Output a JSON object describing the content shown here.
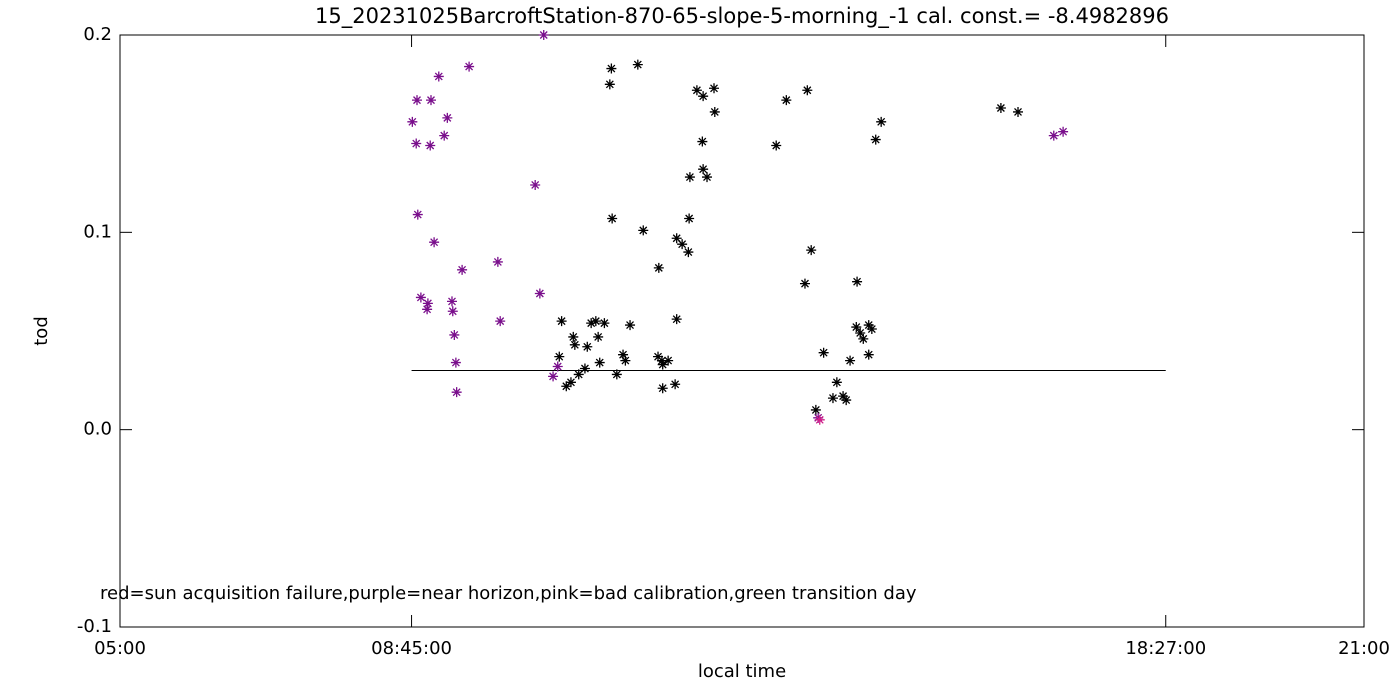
{
  "chart_data": {
    "type": "scatter",
    "title": "15_20231025BarcroftStation-870-65-slope-5-morning_-1 cal. const.= -8.4982896",
    "x_label": "local time",
    "y_label": "tod",
    "annotation": "red=sun acquisition failure,purple=near horizon,pink=bad calibration,green transition day",
    "xlim": [
      5,
      21
    ],
    "ylim": [
      -0.1,
      0.2
    ],
    "xticks": [
      {
        "value": 5,
        "label": "05:00"
      },
      {
        "value": 8.75,
        "label": "08:45:00"
      },
      {
        "value": 18.45,
        "label": "18:27:00"
      },
      {
        "value": 21,
        "label": "21:00"
      }
    ],
    "yticks": [
      -0.1,
      {
        "value": 0,
        "label": "0.0"
      },
      0.1,
      0.2
    ],
    "hline": {
      "value": 0.03,
      "xrange": [
        8.75,
        18.45
      ]
    },
    "series": [
      {
        "color": "#000000",
        "x": [
          11.32,
          11.3,
          11.66,
          11.33,
          11.73,
          11.93,
          12.33,
          12.49,
          12.5,
          12.55,
          12.64,
          12.65,
          12.42,
          12.5,
          12.32,
          12.16,
          12.23,
          12.31,
          13.44,
          13.57,
          13.84,
          13.89,
          13.81,
          14.79,
          14.72,
          16.33,
          16.55,
          14.48,
          14.47,
          14.52,
          14.56,
          14.63,
          14.67,
          14.63,
          14.39,
          14.05,
          13.95,
          14.22,
          14.17,
          14.3,
          14.34,
          10.68,
          10.65,
          10.74,
          10.8,
          10.83,
          10.85,
          10.9,
          10.98,
          11.01,
          11.06,
          11.12,
          11.23,
          11.15,
          11.17,
          11.39,
          11.47,
          11.5,
          11.56,
          11.92,
          11.97,
          11.98,
          12.05,
          11.98,
          12.14,
          12.16
        ],
        "values": [
          0.183,
          0.175,
          0.185,
          0.107,
          0.101,
          0.082,
          0.128,
          0.146,
          0.132,
          0.128,
          0.173,
          0.161,
          0.172,
          0.169,
          0.107,
          0.097,
          0.094,
          0.09,
          0.144,
          0.167,
          0.172,
          0.091,
          0.074,
          0.156,
          0.147,
          0.163,
          0.161,
          0.075,
          0.052,
          0.049,
          0.046,
          0.053,
          0.051,
          0.038,
          0.035,
          0.039,
          0.01,
          0.024,
          0.016,
          0.017,
          0.015,
          0.055,
          0.037,
          0.022,
          0.024,
          0.047,
          0.043,
          0.028,
          0.031,
          0.042,
          0.054,
          0.055,
          0.054,
          0.047,
          0.034,
          0.028,
          0.038,
          0.035,
          0.053,
          0.037,
          0.035,
          0.033,
          0.035,
          0.021,
          0.023,
          0.056
        ]
      },
      {
        "color": "#7a0f8c",
        "x": [
          8.76,
          8.82,
          9.0,
          8.81,
          8.99,
          9.1,
          9.21,
          9.17,
          9.49,
          8.83,
          9.04,
          8.87,
          8.96,
          8.95,
          9.27,
          9.28,
          9.3,
          9.32,
          9.33,
          9.4,
          9.86,
          9.89,
          10.34,
          10.4,
          10.45,
          10.57,
          10.63,
          17.01,
          17.13,
          13.98
        ],
        "values": [
          0.156,
          0.167,
          0.167,
          0.145,
          0.144,
          0.179,
          0.158,
          0.149,
          0.184,
          0.109,
          0.095,
          0.067,
          0.064,
          0.061,
          0.065,
          0.06,
          0.048,
          0.034,
          0.019,
          0.081,
          0.085,
          0.055,
          0.124,
          0.069,
          0.2,
          0.027,
          0.032,
          0.149,
          0.151,
          0.006
        ]
      },
      {
        "color": "#d0208a",
        "x": [
          14.0
        ],
        "values": [
          0.005
        ]
      }
    ]
  }
}
